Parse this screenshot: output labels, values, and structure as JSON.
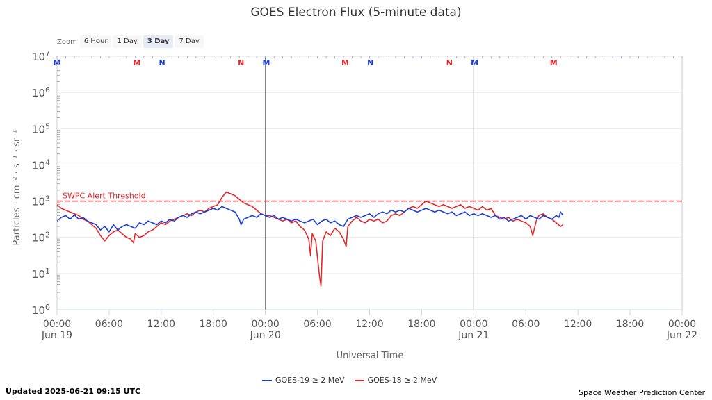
{
  "chart_data": {
    "type": "line",
    "title": "GOES Electron Flux (5-minute data)",
    "xlabel": "Universal Time",
    "ylabel": "Particles · cm⁻² · s⁻¹ · sr⁻¹",
    "y_scale": "log",
    "ylim_exp": [
      0,
      7
    ],
    "y_ticks": [
      {
        "base": "10",
        "exp": "0"
      },
      {
        "base": "10",
        "exp": "1"
      },
      {
        "base": "10",
        "exp": "2"
      },
      {
        "base": "10",
        "exp": "3"
      },
      {
        "base": "10",
        "exp": "4"
      },
      {
        "base": "10",
        "exp": "5"
      },
      {
        "base": "10",
        "exp": "6"
      },
      {
        "base": "10",
        "exp": "7"
      }
    ],
    "xlim_hours": [
      0,
      72
    ],
    "x_ticks": [
      {
        "h": 0,
        "time": "00:00",
        "date": "Jun 19"
      },
      {
        "h": 6,
        "time": "06:00",
        "date": ""
      },
      {
        "h": 12,
        "time": "12:00",
        "date": ""
      },
      {
        "h": 18,
        "time": "18:00",
        "date": ""
      },
      {
        "h": 24,
        "time": "00:00",
        "date": "Jun 20"
      },
      {
        "h": 30,
        "time": "06:00",
        "date": ""
      },
      {
        "h": 36,
        "time": "12:00",
        "date": ""
      },
      {
        "h": 42,
        "time": "18:00",
        "date": ""
      },
      {
        "h": 48,
        "time": "00:00",
        "date": "Jun 21"
      },
      {
        "h": 54,
        "time": "06:00",
        "date": ""
      },
      {
        "h": 60,
        "time": "12:00",
        "date": ""
      },
      {
        "h": 66,
        "time": "18:00",
        "date": ""
      },
      {
        "h": 72,
        "time": "00:00",
        "date": "Jun 22"
      }
    ],
    "day_lines_hours": [
      24,
      48
    ],
    "threshold": {
      "label": "SWPC Alert Threshold",
      "value_exp": 3,
      "color": "#e8262a"
    },
    "markers": [
      {
        "h": 0,
        "text": "M",
        "color": "#1a3fd8"
      },
      {
        "h": 9.2,
        "text": "M",
        "color": "#e8262a"
      },
      {
        "h": 12.1,
        "text": "N",
        "color": "#1a3fd8"
      },
      {
        "h": 21.2,
        "text": "N",
        "color": "#e8262a"
      },
      {
        "h": 24.1,
        "text": "M",
        "color": "#1a3fd8"
      },
      {
        "h": 33.2,
        "text": "M",
        "color": "#e8262a"
      },
      {
        "h": 36.1,
        "text": "N",
        "color": "#1a3fd8"
      },
      {
        "h": 45.2,
        "text": "N",
        "color": "#e8262a"
      },
      {
        "h": 48.1,
        "text": "M",
        "color": "#1a3fd8"
      },
      {
        "h": 57.2,
        "text": "M",
        "color": "#e8262a"
      }
    ],
    "series": [
      {
        "name": "GOES-19 ≥ 2 MeV",
        "color": "#1a3fd8",
        "points": [
          [
            0,
            2.45
          ],
          [
            0.5,
            2.55
          ],
          [
            1,
            2.6
          ],
          [
            1.5,
            2.5
          ],
          [
            2,
            2.62
          ],
          [
            2.5,
            2.5
          ],
          [
            3,
            2.55
          ],
          [
            3.5,
            2.45
          ],
          [
            4,
            2.4
          ],
          [
            4.5,
            2.35
          ],
          [
            5,
            2.2
          ],
          [
            5.5,
            2.3
          ],
          [
            6,
            2.15
          ],
          [
            6.5,
            2.35
          ],
          [
            7,
            2.2
          ],
          [
            7.5,
            2.3
          ],
          [
            8,
            2.35
          ],
          [
            8.5,
            2.3
          ],
          [
            9,
            2.25
          ],
          [
            9.5,
            2.4
          ],
          [
            10,
            2.35
          ],
          [
            10.5,
            2.45
          ],
          [
            11,
            2.4
          ],
          [
            11.5,
            2.35
          ],
          [
            12,
            2.45
          ],
          [
            12.5,
            2.4
          ],
          [
            13,
            2.5
          ],
          [
            13.5,
            2.45
          ],
          [
            14,
            2.55
          ],
          [
            14.5,
            2.6
          ],
          [
            15,
            2.55
          ],
          [
            15.5,
            2.65
          ],
          [
            16,
            2.7
          ],
          [
            16.5,
            2.65
          ],
          [
            17,
            2.7
          ],
          [
            17.5,
            2.75
          ],
          [
            18,
            2.8
          ],
          [
            18.5,
            2.75
          ],
          [
            19,
            2.85
          ],
          [
            19.5,
            2.8
          ],
          [
            20,
            2.75
          ],
          [
            20.5,
            2.7
          ],
          [
            21,
            2.5
          ],
          [
            21.2,
            2.35
          ],
          [
            21.5,
            2.5
          ],
          [
            22,
            2.55
          ],
          [
            22.5,
            2.6
          ],
          [
            23,
            2.55
          ],
          [
            23.5,
            2.65
          ],
          [
            24,
            2.6
          ],
          [
            24.5,
            2.55
          ],
          [
            25,
            2.6
          ],
          [
            25.5,
            2.5
          ],
          [
            26,
            2.55
          ],
          [
            26.5,
            2.5
          ],
          [
            27,
            2.45
          ],
          [
            27.5,
            2.5
          ],
          [
            28,
            2.45
          ],
          [
            28.5,
            2.4
          ],
          [
            29,
            2.45
          ],
          [
            29.5,
            2.5
          ],
          [
            30,
            2.35
          ],
          [
            30.5,
            2.45
          ],
          [
            31,
            2.5
          ],
          [
            31.5,
            2.4
          ],
          [
            32,
            2.45
          ],
          [
            32.5,
            2.35
          ],
          [
            33,
            2.3
          ],
          [
            33.5,
            2.5
          ],
          [
            34,
            2.55
          ],
          [
            34.5,
            2.6
          ],
          [
            35,
            2.55
          ],
          [
            35.5,
            2.6
          ],
          [
            36,
            2.65
          ],
          [
            36.5,
            2.55
          ],
          [
            37,
            2.65
          ],
          [
            37.5,
            2.7
          ],
          [
            38,
            2.65
          ],
          [
            38.5,
            2.75
          ],
          [
            39,
            2.7
          ],
          [
            39.5,
            2.75
          ],
          [
            40,
            2.7
          ],
          [
            40.5,
            2.8
          ],
          [
            41,
            2.75
          ],
          [
            41.5,
            2.7
          ],
          [
            42,
            2.75
          ],
          [
            42.5,
            2.8
          ],
          [
            43,
            2.75
          ],
          [
            43.5,
            2.7
          ],
          [
            44,
            2.75
          ],
          [
            44.5,
            2.7
          ],
          [
            45,
            2.65
          ],
          [
            45.5,
            2.7
          ],
          [
            46,
            2.6
          ],
          [
            46.5,
            2.65
          ],
          [
            47,
            2.7
          ],
          [
            47.5,
            2.6
          ],
          [
            48,
            2.65
          ],
          [
            48.5,
            2.6
          ],
          [
            49,
            2.65
          ],
          [
            49.5,
            2.6
          ],
          [
            50,
            2.55
          ],
          [
            50.5,
            2.6
          ],
          [
            51,
            2.5
          ],
          [
            51.5,
            2.55
          ],
          [
            52,
            2.45
          ],
          [
            52.5,
            2.5
          ],
          [
            53,
            2.55
          ],
          [
            53.5,
            2.6
          ],
          [
            54,
            2.5
          ],
          [
            54.5,
            2.6
          ],
          [
            55,
            2.55
          ],
          [
            55.5,
            2.5
          ],
          [
            56,
            2.6
          ],
          [
            56.5,
            2.55
          ],
          [
            57,
            2.5
          ],
          [
            57.5,
            2.6
          ],
          [
            57.8,
            2.55
          ],
          [
            58,
            2.7
          ],
          [
            58.3,
            2.6
          ]
        ]
      },
      {
        "name": "GOES-18 ≥ 2 MeV",
        "color": "#e8262a",
        "points": [
          [
            0,
            2.9
          ],
          [
            0.5,
            2.8
          ],
          [
            1,
            2.75
          ],
          [
            1.5,
            2.7
          ],
          [
            2,
            2.65
          ],
          [
            2.5,
            2.6
          ],
          [
            3,
            2.5
          ],
          [
            3.5,
            2.45
          ],
          [
            4,
            2.35
          ],
          [
            4.5,
            2.25
          ],
          [
            5,
            2.05
          ],
          [
            5.5,
            1.9
          ],
          [
            6,
            2.05
          ],
          [
            6.5,
            2.15
          ],
          [
            7,
            2.2
          ],
          [
            7.5,
            2.1
          ],
          [
            8,
            2.0
          ],
          [
            8.5,
            1.95
          ],
          [
            8.8,
            1.85
          ],
          [
            9,
            2.1
          ],
          [
            9.5,
            2.0
          ],
          [
            10,
            2.05
          ],
          [
            10.5,
            2.15
          ],
          [
            11,
            2.2
          ],
          [
            11.5,
            2.3
          ],
          [
            12,
            2.4
          ],
          [
            12.5,
            2.35
          ],
          [
            13,
            2.45
          ],
          [
            13.5,
            2.5
          ],
          [
            14,
            2.55
          ],
          [
            14.5,
            2.6
          ],
          [
            15,
            2.65
          ],
          [
            15.5,
            2.6
          ],
          [
            16,
            2.7
          ],
          [
            16.5,
            2.75
          ],
          [
            17,
            2.7
          ],
          [
            17.5,
            2.8
          ],
          [
            18,
            2.85
          ],
          [
            18.5,
            2.9
          ],
          [
            19,
            3.1
          ],
          [
            19.5,
            3.25
          ],
          [
            20,
            3.2
          ],
          [
            20.5,
            3.15
          ],
          [
            21,
            3.05
          ],
          [
            21.5,
            2.95
          ],
          [
            22,
            2.9
          ],
          [
            22.5,
            2.85
          ],
          [
            23,
            2.75
          ],
          [
            23.5,
            2.65
          ],
          [
            24,
            2.6
          ],
          [
            24.5,
            2.6
          ],
          [
            25,
            2.55
          ],
          [
            25.5,
            2.5
          ],
          [
            26,
            2.45
          ],
          [
            26.5,
            2.5
          ],
          [
            27,
            2.4
          ],
          [
            27.5,
            2.45
          ],
          [
            28,
            2.3
          ],
          [
            28.5,
            2.2
          ],
          [
            29,
            1.95
          ],
          [
            29.2,
            1.5
          ],
          [
            29.4,
            2.1
          ],
          [
            29.8,
            1.9
          ],
          [
            30.2,
            1.0
          ],
          [
            30.4,
            0.65
          ],
          [
            30.6,
            1.9
          ],
          [
            31,
            2.15
          ],
          [
            31.5,
            2.05
          ],
          [
            32,
            2.25
          ],
          [
            32.5,
            2.15
          ],
          [
            33,
            1.95
          ],
          [
            33.3,
            1.75
          ],
          [
            33.5,
            2.3
          ],
          [
            34,
            2.45
          ],
          [
            34.5,
            2.55
          ],
          [
            35,
            2.45
          ],
          [
            35.5,
            2.4
          ],
          [
            36,
            2.5
          ],
          [
            36.5,
            2.45
          ],
          [
            37,
            2.5
          ],
          [
            37.5,
            2.4
          ],
          [
            38,
            2.45
          ],
          [
            38.5,
            2.6
          ],
          [
            39,
            2.65
          ],
          [
            39.5,
            2.6
          ],
          [
            40,
            2.7
          ],
          [
            40.5,
            2.8
          ],
          [
            41,
            2.85
          ],
          [
            41.5,
            2.8
          ],
          [
            42,
            2.9
          ],
          [
            42.5,
            3.0
          ],
          [
            43,
            2.95
          ],
          [
            43.5,
            2.9
          ],
          [
            44,
            2.85
          ],
          [
            44.5,
            2.9
          ],
          [
            45,
            2.85
          ],
          [
            45.5,
            2.8
          ],
          [
            46,
            2.85
          ],
          [
            46.5,
            2.9
          ],
          [
            47,
            2.8
          ],
          [
            47.5,
            2.85
          ],
          [
            48,
            2.8
          ],
          [
            48.5,
            2.75
          ],
          [
            49,
            2.85
          ],
          [
            49.5,
            2.75
          ],
          [
            50,
            2.8
          ],
          [
            50.5,
            2.6
          ],
          [
            51,
            2.55
          ],
          [
            51.5,
            2.5
          ],
          [
            52,
            2.55
          ],
          [
            52.5,
            2.45
          ],
          [
            53,
            2.5
          ],
          [
            53.5,
            2.45
          ],
          [
            54,
            2.4
          ],
          [
            54.5,
            2.3
          ],
          [
            54.8,
            2.05
          ],
          [
            55.2,
            2.45
          ],
          [
            55.5,
            2.6
          ],
          [
            56,
            2.65
          ],
          [
            56.5,
            2.55
          ],
          [
            57,
            2.5
          ],
          [
            57.5,
            2.4
          ],
          [
            58,
            2.3
          ],
          [
            58.3,
            2.35
          ]
        ]
      }
    ]
  },
  "zoom": {
    "label": "Zoom",
    "buttons": [
      "6 Hour",
      "1 Day",
      "3 Day",
      "7 Day"
    ],
    "active": "3 Day"
  },
  "footer": {
    "updated": "Updated 2025-06-21 09:15 UTC",
    "credit": "Space Weather Prediction Center"
  }
}
